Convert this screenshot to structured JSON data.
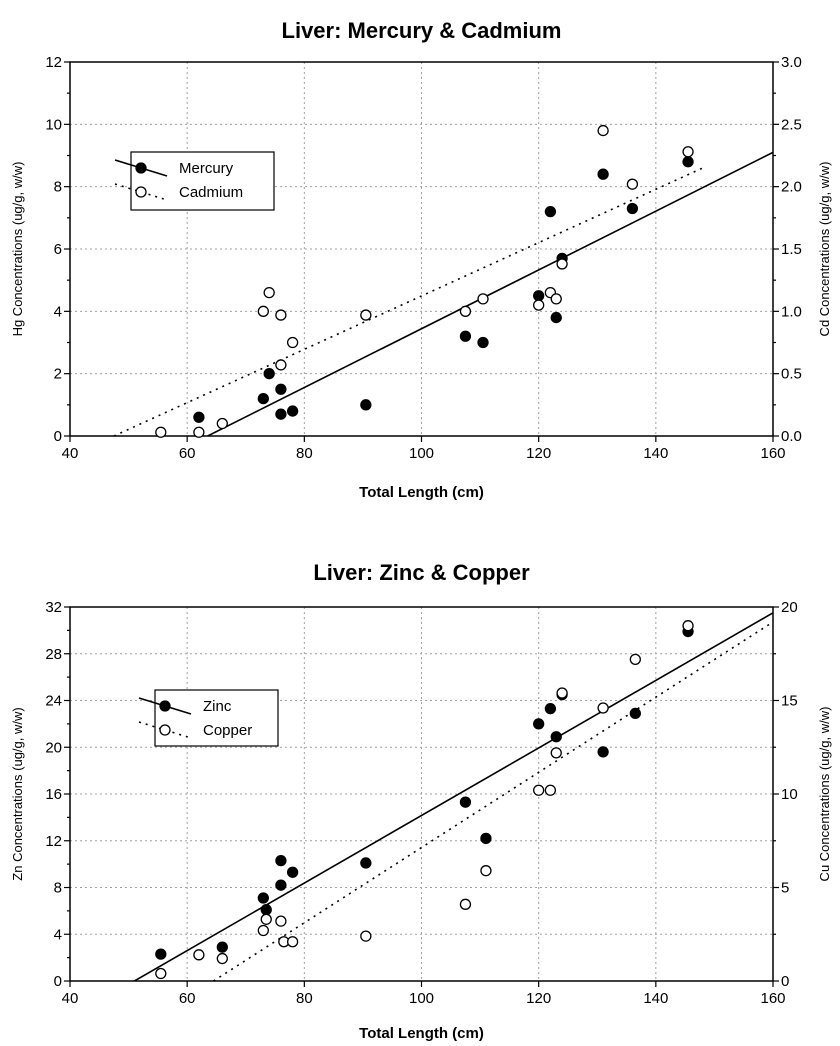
{
  "chart_data": [
    {
      "type": "scatter",
      "title": "Liver: Mercury & Cadmium",
      "xlabel": "Total Length (cm)",
      "ylabel_left": "Hg Concentrations (ug/g, w/w)",
      "ylabel_right": "Cd Concentrations (ug/g, w/w)",
      "xlim": [
        40,
        160
      ],
      "ylim_left": [
        0,
        12
      ],
      "ylim_right": [
        0,
        3
      ],
      "x_ticks": [
        "40",
        "60",
        "80",
        "100",
        "120",
        "140",
        "160"
      ],
      "y_left_ticks": [
        "0",
        "2",
        "4",
        "6",
        "8",
        "10",
        "12"
      ],
      "y_right_ticks": [
        "0.0",
        "0.5",
        "1.0",
        "1.5",
        "2.0",
        "2.5",
        "3.0"
      ],
      "grid": true,
      "legend_position": "upper-left",
      "series": [
        {
          "name": "Mercury",
          "axis": "left",
          "marker": "filled-circle",
          "line": "solid",
          "points": [
            [
              62,
              0.6
            ],
            [
              73,
              1.2
            ],
            [
              74,
              2.0
            ],
            [
              76,
              1.5
            ],
            [
              76,
              0.7
            ],
            [
              78,
              0.8
            ],
            [
              90.5,
              1.0
            ],
            [
              107.5,
              3.2
            ],
            [
              110.5,
              3.0
            ],
            [
              120,
              4.5
            ],
            [
              122,
              7.2
            ],
            [
              123,
              3.8
            ],
            [
              124,
              5.7
            ],
            [
              131,
              8.4
            ],
            [
              136,
              7.3
            ],
            [
              145.5,
              8.8
            ]
          ],
          "fit": [
            [
              63.5,
              0
            ],
            [
              160,
              9.1
            ]
          ]
        },
        {
          "name": "Cadmium",
          "axis": "right",
          "marker": "open-circle",
          "line": "dotted",
          "points": [
            [
              55.5,
              0.03
            ],
            [
              62,
              0.03
            ],
            [
              66,
              0.1
            ],
            [
              73,
              1.0
            ],
            [
              74,
              1.15
            ],
            [
              76,
              0.97
            ],
            [
              76,
              0.57
            ],
            [
              78,
              0.75
            ],
            [
              90.5,
              0.97
            ],
            [
              107.5,
              1.0
            ],
            [
              110.5,
              1.1
            ],
            [
              120,
              1.05
            ],
            [
              122,
              1.15
            ],
            [
              123,
              1.1
            ],
            [
              124,
              1.38
            ],
            [
              131,
              2.45
            ],
            [
              136,
              2.02
            ],
            [
              145.5,
              2.28
            ]
          ],
          "fit": [
            [
              47.5,
              0
            ],
            [
              148,
              2.15
            ]
          ]
        }
      ]
    },
    {
      "type": "scatter",
      "title": "Liver: Zinc & Copper",
      "xlabel": "Total Length (cm)",
      "ylabel_left": "Zn Concentrations (ug/g, w/w)",
      "ylabel_right": "Cu Concentrations (ug/g, w/w)",
      "xlim": [
        40,
        160
      ],
      "ylim_left": [
        0,
        32
      ],
      "ylim_right": [
        0,
        20
      ],
      "x_ticks": [
        "40",
        "60",
        "80",
        "100",
        "120",
        "140",
        "160"
      ],
      "y_left_ticks": [
        "0",
        "4",
        "8",
        "12",
        "16",
        "20",
        "24",
        "28",
        "32"
      ],
      "y_right_ticks": [
        "0",
        "5",
        "10",
        "15",
        "20"
      ],
      "grid": true,
      "legend_position": "upper-left",
      "series": [
        {
          "name": "Zinc",
          "axis": "left",
          "marker": "filled-circle",
          "line": "solid",
          "points": [
            [
              55.5,
              2.3
            ],
            [
              66,
              2.9
            ],
            [
              73,
              7.1
            ],
            [
              73.5,
              6.1
            ],
            [
              76,
              10.3
            ],
            [
              76,
              8.2
            ],
            [
              78,
              9.3
            ],
            [
              90.5,
              10.1
            ],
            [
              107.5,
              15.3
            ],
            [
              111,
              12.2
            ],
            [
              120,
              22.0
            ],
            [
              122,
              23.3
            ],
            [
              123,
              20.9
            ],
            [
              124,
              24.5
            ],
            [
              131,
              19.6
            ],
            [
              136.5,
              22.9
            ],
            [
              145.5,
              29.9
            ]
          ],
          "fit": [
            [
              51,
              0
            ],
            [
              160,
              31.5
            ]
          ]
        },
        {
          "name": "Copper",
          "axis": "right",
          "marker": "open-circle",
          "line": "dotted",
          "points": [
            [
              55.5,
              0.4
            ],
            [
              62,
              1.4
            ],
            [
              66,
              1.2
            ],
            [
              73,
              2.7
            ],
            [
              73.5,
              3.3
            ],
            [
              76,
              3.2
            ],
            [
              76.5,
              2.1
            ],
            [
              78,
              2.1
            ],
            [
              90.5,
              2.4
            ],
            [
              107.5,
              4.1
            ],
            [
              111,
              5.9
            ],
            [
              120,
              10.2
            ],
            [
              122,
              10.2
            ],
            [
              123,
              12.2
            ],
            [
              124,
              15.4
            ],
            [
              131,
              14.6
            ],
            [
              136.5,
              17.2
            ],
            [
              145.5,
              19.0
            ]
          ],
          "fit": [
            [
              64.5,
              0
            ],
            [
              160,
              19.2
            ]
          ]
        }
      ]
    }
  ]
}
